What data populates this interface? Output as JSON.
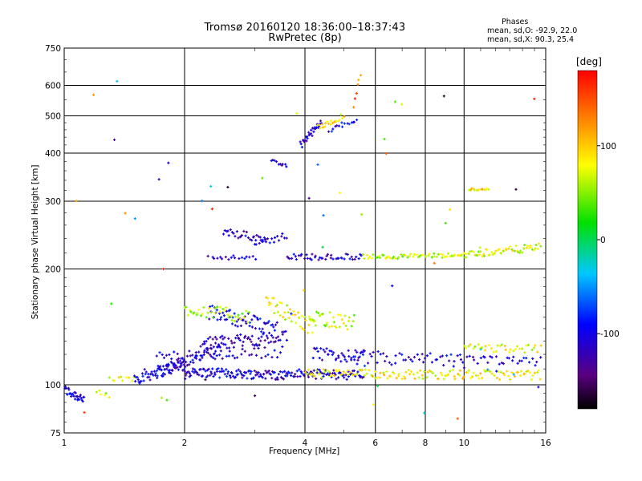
{
  "header": {
    "title_line1": "Tromsø 20160120 18:36:00–18:37:43",
    "title_line2": "RwPretec (8p)",
    "stats_title": "Phases",
    "stats_o": "mean, sd,O: -92.9, 22.0",
    "stats_x": "mean, sd,X:  90.3, 25.4"
  },
  "colors": {
    "background": "#ffffff",
    "grid": "#000000"
  },
  "chart_data": {
    "type": "scatter",
    "xlabel": "Frequency [MHz]",
    "ylabel": "Stationary phase Virtual Height [km]",
    "x_scale": "log",
    "y_scale": "log",
    "xlim": [
      1,
      16
    ],
    "ylim": [
      75,
      750
    ],
    "x_ticks": [
      1,
      2,
      4,
      6,
      8,
      10,
      16
    ],
    "y_ticks": [
      75,
      100,
      200,
      300,
      400,
      500,
      600,
      750
    ],
    "grid": true,
    "colorbar": {
      "label": "[deg]",
      "range": [
        -180,
        180
      ],
      "ticks": [
        100,
        0,
        -100
      ],
      "colormap": "rainbow (black-purple-blue-cyan-green-yellow-red)"
    },
    "traces": [
      {
        "f_start": 1.0,
        "f_end": 1.12,
        "h_start": 97,
        "h_end": 92,
        "phase": -100,
        "count": 30,
        "spread": 3
      },
      {
        "f_start": 1.2,
        "f_end": 1.3,
        "h_start": 95,
        "h_end": 93,
        "phase": 70,
        "count": 6,
        "spread": 2
      },
      {
        "f_start": 1.3,
        "f_end": 1.5,
        "h_start": 103,
        "h_end": 104,
        "phase": 70,
        "count": 10,
        "spread": 2
      },
      {
        "f_start": 1.5,
        "f_end": 2.0,
        "h_start": 104,
        "h_end": 113,
        "phase": -105,
        "count": 60,
        "spread": 4
      },
      {
        "f_start": 1.7,
        "f_end": 2.5,
        "h_start": 108,
        "h_end": 125,
        "phase": -110,
        "count": 55,
        "spread": 4
      },
      {
        "f_start": 2.0,
        "f_end": 3.6,
        "h_start": 108,
        "h_end": 106,
        "phase": -105,
        "count": 110,
        "spread": 3
      },
      {
        "f_start": 3.6,
        "f_end": 5.6,
        "h_start": 107,
        "h_end": 106,
        "phase": -110,
        "count": 70,
        "spread": 3
      },
      {
        "f_start": 4.0,
        "f_end": 15.5,
        "h_start": 107,
        "h_end": 106,
        "phase": 85,
        "count": 140,
        "spread": 3
      },
      {
        "f_start": 1.7,
        "f_end": 3.5,
        "h_start": 118,
        "h_end": 122,
        "phase": -110,
        "count": 50,
        "spread": 4
      },
      {
        "f_start": 2.2,
        "f_end": 3.6,
        "h_start": 128,
        "h_end": 133,
        "phase": -115,
        "count": 70,
        "spread": 5
      },
      {
        "f_start": 2.3,
        "f_end": 3.4,
        "h_start": 155,
        "h_end": 140,
        "phase": -100,
        "count": 60,
        "spread": 7
      },
      {
        "f_start": 2.0,
        "f_end": 2.9,
        "h_start": 158,
        "h_end": 150,
        "phase": 60,
        "count": 40,
        "spread": 6
      },
      {
        "f_start": 3.2,
        "f_end": 4.2,
        "h_start": 165,
        "h_end": 140,
        "phase": 75,
        "count": 40,
        "spread": 7
      },
      {
        "f_start": 4.1,
        "f_end": 5.3,
        "h_start": 150,
        "h_end": 145,
        "phase": 65,
        "count": 35,
        "spread": 7
      },
      {
        "f_start": 4.2,
        "f_end": 5.6,
        "h_start": 120,
        "h_end": 118,
        "phase": -110,
        "count": 40,
        "spread": 5
      },
      {
        "f_start": 5.3,
        "f_end": 10.0,
        "h_start": 118,
        "h_end": 115,
        "phase": -105,
        "count": 50,
        "spread": 5
      },
      {
        "f_start": 10.0,
        "f_end": 15.5,
        "h_start": 125,
        "h_end": 124,
        "phase": 75,
        "count": 35,
        "spread": 3
      },
      {
        "f_start": 10.0,
        "f_end": 15.5,
        "h_start": 116,
        "h_end": 115,
        "phase": -105,
        "count": 30,
        "spread": 3
      },
      {
        "f_start": 2.5,
        "f_end": 3.2,
        "h_start": 250,
        "h_end": 240,
        "phase": -110,
        "count": 30,
        "spread": 6
      },
      {
        "f_start": 3.0,
        "f_end": 3.6,
        "h_start": 230,
        "h_end": 245,
        "phase": -110,
        "count": 18,
        "spread": 5
      },
      {
        "f_start": 2.3,
        "f_end": 3.0,
        "h_start": 215,
        "h_end": 213,
        "phase": -110,
        "count": 18,
        "spread": 3
      },
      {
        "f_start": 3.6,
        "f_end": 5.6,
        "h_start": 215,
        "h_end": 215,
        "phase": -110,
        "count": 45,
        "spread": 4
      },
      {
        "f_start": 5.6,
        "f_end": 10.0,
        "h_start": 215,
        "h_end": 217,
        "phase": 60,
        "count": 60,
        "spread": 3
      },
      {
        "f_start": 10.0,
        "f_end": 15.5,
        "h_start": 218,
        "h_end": 228,
        "phase": 70,
        "count": 60,
        "spread": 5
      },
      {
        "f_start": 10.3,
        "f_end": 11.5,
        "h_start": 322,
        "h_end": 322,
        "phase": 90,
        "count": 14,
        "spread": 2
      },
      {
        "f_start": 3.3,
        "f_end": 3.6,
        "h_start": 382,
        "h_end": 372,
        "phase": -110,
        "count": 10,
        "spread": 4
      },
      {
        "f_start": 3.9,
        "f_end": 4.4,
        "h_start": 420,
        "h_end": 480,
        "phase": -110,
        "count": 30,
        "spread": 10
      },
      {
        "f_start": 4.3,
        "f_end": 5.0,
        "h_start": 465,
        "h_end": 500,
        "phase": 85,
        "count": 20,
        "spread": 8
      },
      {
        "f_start": 4.6,
        "f_end": 5.4,
        "h_start": 460,
        "h_end": 490,
        "phase": -100,
        "count": 15,
        "spread": 8
      },
      {
        "f_start": 5.3,
        "f_end": 5.5,
        "h_start": 530,
        "h_end": 640,
        "phase": 140,
        "count": 6,
        "spread": 10
      },
      {
        "f_start": 1.0,
        "f_end": 15.5,
        "h_start": 100,
        "h_end": 100,
        "phase": 0,
        "count": 55,
        "spread": 80
      }
    ]
  }
}
